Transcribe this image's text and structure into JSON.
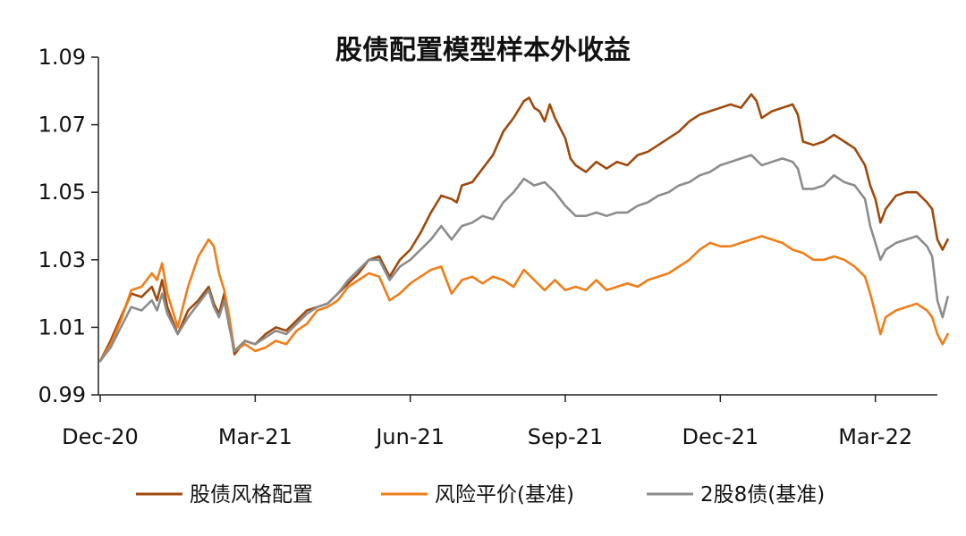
{
  "chart_data": {
    "type": "line",
    "title": "股债配置模型样本外收益",
    "xlabel": "",
    "ylabel": "",
    "ylim": [
      0.99,
      1.09
    ],
    "yticks": [
      "0.99",
      "1.01",
      "1.03",
      "1.05",
      "1.07",
      "1.09"
    ],
    "x_ticks": [
      "Dec-20",
      "Mar-21",
      "Jun-21",
      "Sep-21",
      "Dec-21",
      "Mar-22"
    ],
    "x_tick_months": [
      0,
      3,
      6,
      9,
      12,
      15
    ],
    "x_max_month": 16.2,
    "grid": false,
    "legend": "bottom",
    "series": [
      {
        "name": "股债风格配置",
        "color": "#9E4A0C",
        "points": [
          [
            0,
            1.0
          ],
          [
            0.2,
            1.006
          ],
          [
            0.4,
            1.013
          ],
          [
            0.6,
            1.02
          ],
          [
            0.8,
            1.019
          ],
          [
            1.0,
            1.022
          ],
          [
            1.1,
            1.018
          ],
          [
            1.2,
            1.024
          ],
          [
            1.3,
            1.016
          ],
          [
            1.5,
            1.008
          ],
          [
            1.7,
            1.015
          ],
          [
            1.9,
            1.018
          ],
          [
            2.1,
            1.022
          ],
          [
            2.2,
            1.017
          ],
          [
            2.3,
            1.014
          ],
          [
            2.4,
            1.02
          ],
          [
            2.5,
            1.011
          ],
          [
            2.6,
            1.002
          ],
          [
            2.8,
            1.006
          ],
          [
            3.0,
            1.005
          ],
          [
            3.2,
            1.008
          ],
          [
            3.4,
            1.01
          ],
          [
            3.6,
            1.009
          ],
          [
            3.8,
            1.012
          ],
          [
            4.0,
            1.015
          ],
          [
            4.2,
            1.016
          ],
          [
            4.4,
            1.017
          ],
          [
            4.6,
            1.02
          ],
          [
            4.8,
            1.023
          ],
          [
            5.0,
            1.026
          ],
          [
            5.2,
            1.03
          ],
          [
            5.4,
            1.031
          ],
          [
            5.6,
            1.025
          ],
          [
            5.8,
            1.03
          ],
          [
            6.0,
            1.033
          ],
          [
            6.2,
            1.038
          ],
          [
            6.4,
            1.044
          ],
          [
            6.6,
            1.049
          ],
          [
            6.8,
            1.048
          ],
          [
            6.9,
            1.047
          ],
          [
            7.0,
            1.052
          ],
          [
            7.2,
            1.053
          ],
          [
            7.4,
            1.057
          ],
          [
            7.6,
            1.061
          ],
          [
            7.8,
            1.068
          ],
          [
            8.0,
            1.072
          ],
          [
            8.2,
            1.077
          ],
          [
            8.3,
            1.078
          ],
          [
            8.4,
            1.075
          ],
          [
            8.5,
            1.074
          ],
          [
            8.6,
            1.071
          ],
          [
            8.7,
            1.076
          ],
          [
            8.8,
            1.072
          ],
          [
            9.0,
            1.066
          ],
          [
            9.1,
            1.06
          ],
          [
            9.2,
            1.058
          ],
          [
            9.4,
            1.056
          ],
          [
            9.6,
            1.059
          ],
          [
            9.8,
            1.057
          ],
          [
            10.0,
            1.059
          ],
          [
            10.2,
            1.058
          ],
          [
            10.4,
            1.061
          ],
          [
            10.6,
            1.062
          ],
          [
            10.8,
            1.064
          ],
          [
            11.0,
            1.066
          ],
          [
            11.2,
            1.068
          ],
          [
            11.4,
            1.071
          ],
          [
            11.6,
            1.073
          ],
          [
            11.8,
            1.074
          ],
          [
            12.0,
            1.075
          ],
          [
            12.2,
            1.076
          ],
          [
            12.4,
            1.075
          ],
          [
            12.6,
            1.079
          ],
          [
            12.7,
            1.077
          ],
          [
            12.8,
            1.072
          ],
          [
            13.0,
            1.074
          ],
          [
            13.2,
            1.075
          ],
          [
            13.4,
            1.076
          ],
          [
            13.5,
            1.073
          ],
          [
            13.6,
            1.065
          ],
          [
            13.8,
            1.064
          ],
          [
            14.0,
            1.065
          ],
          [
            14.2,
            1.067
          ],
          [
            14.4,
            1.065
          ],
          [
            14.6,
            1.063
          ],
          [
            14.8,
            1.058
          ],
          [
            14.9,
            1.052
          ],
          [
            15.0,
            1.048
          ],
          [
            15.1,
            1.041
          ],
          [
            15.2,
            1.045
          ],
          [
            15.4,
            1.049
          ],
          [
            15.6,
            1.05
          ],
          [
            15.8,
            1.05
          ],
          [
            16.0,
            1.047
          ],
          [
            16.1,
            1.045
          ],
          [
            16.2,
            1.036
          ],
          [
            16.3,
            1.033
          ],
          [
            16.4,
            1.036
          ]
        ]
      },
      {
        "name": "风险平价(基准)",
        "color": "#F07D18",
        "points": [
          [
            0,
            1.0
          ],
          [
            0.2,
            1.005
          ],
          [
            0.4,
            1.012
          ],
          [
            0.6,
            1.021
          ],
          [
            0.8,
            1.022
          ],
          [
            1.0,
            1.026
          ],
          [
            1.1,
            1.024
          ],
          [
            1.2,
            1.029
          ],
          [
            1.3,
            1.02
          ],
          [
            1.5,
            1.01
          ],
          [
            1.7,
            1.022
          ],
          [
            1.9,
            1.031
          ],
          [
            2.1,
            1.036
          ],
          [
            2.2,
            1.034
          ],
          [
            2.3,
            1.026
          ],
          [
            2.4,
            1.021
          ],
          [
            2.5,
            1.013
          ],
          [
            2.6,
            1.003
          ],
          [
            2.8,
            1.005
          ],
          [
            3.0,
            1.003
          ],
          [
            3.2,
            1.004
          ],
          [
            3.4,
            1.006
          ],
          [
            3.6,
            1.005
          ],
          [
            3.8,
            1.009
          ],
          [
            4.0,
            1.011
          ],
          [
            4.2,
            1.015
          ],
          [
            4.4,
            1.016
          ],
          [
            4.6,
            1.018
          ],
          [
            4.8,
            1.022
          ],
          [
            5.0,
            1.024
          ],
          [
            5.2,
            1.026
          ],
          [
            5.4,
            1.025
          ],
          [
            5.6,
            1.018
          ],
          [
            5.8,
            1.02
          ],
          [
            6.0,
            1.023
          ],
          [
            6.2,
            1.025
          ],
          [
            6.4,
            1.027
          ],
          [
            6.6,
            1.028
          ],
          [
            6.8,
            1.02
          ],
          [
            7.0,
            1.024
          ],
          [
            7.2,
            1.025
          ],
          [
            7.4,
            1.023
          ],
          [
            7.6,
            1.025
          ],
          [
            7.8,
            1.024
          ],
          [
            8.0,
            1.022
          ],
          [
            8.2,
            1.027
          ],
          [
            8.4,
            1.024
          ],
          [
            8.6,
            1.021
          ],
          [
            8.8,
            1.024
          ],
          [
            9.0,
            1.021
          ],
          [
            9.2,
            1.022
          ],
          [
            9.4,
            1.021
          ],
          [
            9.6,
            1.024
          ],
          [
            9.8,
            1.021
          ],
          [
            10.0,
            1.022
          ],
          [
            10.2,
            1.023
          ],
          [
            10.4,
            1.022
          ],
          [
            10.6,
            1.024
          ],
          [
            10.8,
            1.025
          ],
          [
            11.0,
            1.026
          ],
          [
            11.2,
            1.028
          ],
          [
            11.4,
            1.03
          ],
          [
            11.6,
            1.033
          ],
          [
            11.8,
            1.035
          ],
          [
            12.0,
            1.034
          ],
          [
            12.2,
            1.034
          ],
          [
            12.4,
            1.035
          ],
          [
            12.6,
            1.036
          ],
          [
            12.8,
            1.037
          ],
          [
            13.0,
            1.036
          ],
          [
            13.2,
            1.035
          ],
          [
            13.4,
            1.033
          ],
          [
            13.6,
            1.032
          ],
          [
            13.8,
            1.03
          ],
          [
            14.0,
            1.03
          ],
          [
            14.2,
            1.031
          ],
          [
            14.4,
            1.03
          ],
          [
            14.6,
            1.028
          ],
          [
            14.8,
            1.025
          ],
          [
            14.9,
            1.02
          ],
          [
            15.0,
            1.014
          ],
          [
            15.1,
            1.008
          ],
          [
            15.2,
            1.013
          ],
          [
            15.4,
            1.015
          ],
          [
            15.6,
            1.016
          ],
          [
            15.8,
            1.017
          ],
          [
            16.0,
            1.015
          ],
          [
            16.1,
            1.013
          ],
          [
            16.2,
            1.008
          ],
          [
            16.3,
            1.005
          ],
          [
            16.4,
            1.008
          ]
        ]
      },
      {
        "name": "2股8债(基准)",
        "color": "#8C8C8C",
        "points": [
          [
            0,
            1.0
          ],
          [
            0.2,
            1.004
          ],
          [
            0.4,
            1.01
          ],
          [
            0.6,
            1.016
          ],
          [
            0.8,
            1.015
          ],
          [
            1.0,
            1.018
          ],
          [
            1.1,
            1.015
          ],
          [
            1.2,
            1.02
          ],
          [
            1.3,
            1.014
          ],
          [
            1.5,
            1.008
          ],
          [
            1.7,
            1.013
          ],
          [
            1.9,
            1.017
          ],
          [
            2.1,
            1.021
          ],
          [
            2.2,
            1.016
          ],
          [
            2.3,
            1.013
          ],
          [
            2.4,
            1.018
          ],
          [
            2.5,
            1.01
          ],
          [
            2.6,
            1.003
          ],
          [
            2.8,
            1.006
          ],
          [
            3.0,
            1.005
          ],
          [
            3.2,
            1.007
          ],
          [
            3.4,
            1.009
          ],
          [
            3.6,
            1.008
          ],
          [
            3.8,
            1.011
          ],
          [
            4.0,
            1.014
          ],
          [
            4.2,
            1.016
          ],
          [
            4.4,
            1.017
          ],
          [
            4.6,
            1.02
          ],
          [
            4.8,
            1.024
          ],
          [
            5.0,
            1.027
          ],
          [
            5.2,
            1.03
          ],
          [
            5.4,
            1.03
          ],
          [
            5.6,
            1.024
          ],
          [
            5.8,
            1.028
          ],
          [
            6.0,
            1.03
          ],
          [
            6.2,
            1.033
          ],
          [
            6.4,
            1.036
          ],
          [
            6.6,
            1.04
          ],
          [
            6.8,
            1.036
          ],
          [
            7.0,
            1.04
          ],
          [
            7.2,
            1.041
          ],
          [
            7.4,
            1.043
          ],
          [
            7.6,
            1.042
          ],
          [
            7.8,
            1.047
          ],
          [
            8.0,
            1.05
          ],
          [
            8.2,
            1.054
          ],
          [
            8.4,
            1.052
          ],
          [
            8.6,
            1.053
          ],
          [
            8.8,
            1.05
          ],
          [
            9.0,
            1.046
          ],
          [
            9.2,
            1.043
          ],
          [
            9.4,
            1.043
          ],
          [
            9.6,
            1.044
          ],
          [
            9.8,
            1.043
          ],
          [
            10.0,
            1.044
          ],
          [
            10.2,
            1.044
          ],
          [
            10.4,
            1.046
          ],
          [
            10.6,
            1.047
          ],
          [
            10.8,
            1.049
          ],
          [
            11.0,
            1.05
          ],
          [
            11.2,
            1.052
          ],
          [
            11.4,
            1.053
          ],
          [
            11.6,
            1.055
          ],
          [
            11.8,
            1.056
          ],
          [
            12.0,
            1.058
          ],
          [
            12.2,
            1.059
          ],
          [
            12.4,
            1.06
          ],
          [
            12.6,
            1.061
          ],
          [
            12.8,
            1.058
          ],
          [
            13.0,
            1.059
          ],
          [
            13.2,
            1.06
          ],
          [
            13.4,
            1.059
          ],
          [
            13.5,
            1.057
          ],
          [
            13.6,
            1.051
          ],
          [
            13.8,
            1.051
          ],
          [
            14.0,
            1.052
          ],
          [
            14.2,
            1.055
          ],
          [
            14.4,
            1.053
          ],
          [
            14.6,
            1.052
          ],
          [
            14.8,
            1.048
          ],
          [
            14.9,
            1.04
          ],
          [
            15.0,
            1.035
          ],
          [
            15.1,
            1.03
          ],
          [
            15.2,
            1.033
          ],
          [
            15.4,
            1.035
          ],
          [
            15.6,
            1.036
          ],
          [
            15.8,
            1.037
          ],
          [
            16.0,
            1.034
          ],
          [
            16.1,
            1.031
          ],
          [
            16.2,
            1.018
          ],
          [
            16.3,
            1.013
          ],
          [
            16.4,
            1.019
          ]
        ]
      }
    ]
  }
}
